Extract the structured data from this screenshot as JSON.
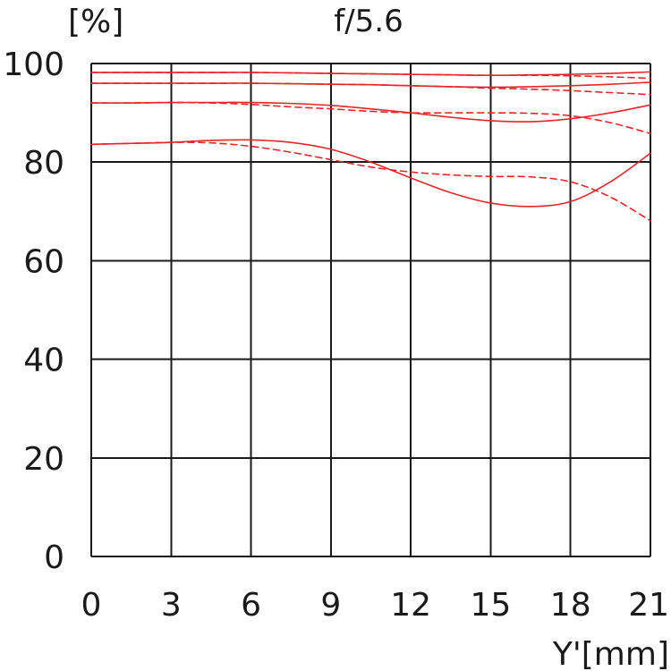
{
  "chart_data": {
    "type": "line",
    "title": "f/5.6",
    "ylabel": "[%]",
    "xlabel": "Y'[mm]",
    "xlim": [
      0,
      21
    ],
    "ylim": [
      0,
      100
    ],
    "xticks": [
      0,
      3,
      6,
      9,
      12,
      15,
      18,
      21
    ],
    "yticks": [
      0,
      20,
      40,
      60,
      80,
      100
    ],
    "grid": true,
    "line_color": "#e8252a",
    "x": [
      0,
      1.5,
      3,
      4.5,
      6,
      7.5,
      9,
      10.5,
      12,
      13.5,
      15,
      16.5,
      18,
      19.5,
      21
    ],
    "series": [
      {
        "style": "solid",
        "values": [
          98.2,
          98.2,
          98.2,
          98.2,
          98.2,
          98.1,
          98.0,
          97.9,
          97.8,
          97.7,
          97.6,
          97.7,
          97.8,
          98.0,
          98.3
        ]
      },
      {
        "style": "dashed",
        "values": [
          98.2,
          98.2,
          98.2,
          98.2,
          98.2,
          98.1,
          98.0,
          97.9,
          97.8,
          97.7,
          97.6,
          97.6,
          97.5,
          97.3,
          97.0
        ]
      },
      {
        "style": "solid",
        "values": [
          96.0,
          96.0,
          96.0,
          96.0,
          96.0,
          95.9,
          95.8,
          95.7,
          95.5,
          95.3,
          95.2,
          95.3,
          95.5,
          95.8,
          96.2
        ]
      },
      {
        "style": "dashed",
        "values": [
          96.0,
          96.0,
          96.0,
          96.0,
          96.0,
          95.9,
          95.8,
          95.7,
          95.5,
          95.3,
          95.0,
          94.8,
          94.5,
          94.1,
          93.7
        ]
      },
      {
        "style": "solid",
        "values": [
          92.0,
          92.0,
          92.1,
          92.1,
          92.1,
          91.9,
          91.5,
          90.8,
          90.0,
          89.1,
          88.4,
          88.2,
          88.8,
          90.0,
          91.6
        ]
      },
      {
        "style": "dashed",
        "values": [
          92.0,
          92.0,
          92.1,
          92.0,
          91.7,
          91.2,
          90.8,
          90.3,
          90.0,
          90.0,
          90.0,
          89.9,
          89.4,
          88.0,
          85.8
        ]
      },
      {
        "style": "solid",
        "values": [
          83.6,
          83.8,
          84.0,
          84.4,
          84.5,
          84.0,
          82.6,
          80.0,
          76.8,
          73.8,
          71.7,
          71.0,
          72.0,
          76.0,
          81.8
        ]
      },
      {
        "style": "dashed",
        "values": [
          83.6,
          83.8,
          84.0,
          83.9,
          83.2,
          82.0,
          80.5,
          79.0,
          78.0,
          77.4,
          77.1,
          77.0,
          76.0,
          72.9,
          68.1
        ]
      }
    ]
  }
}
